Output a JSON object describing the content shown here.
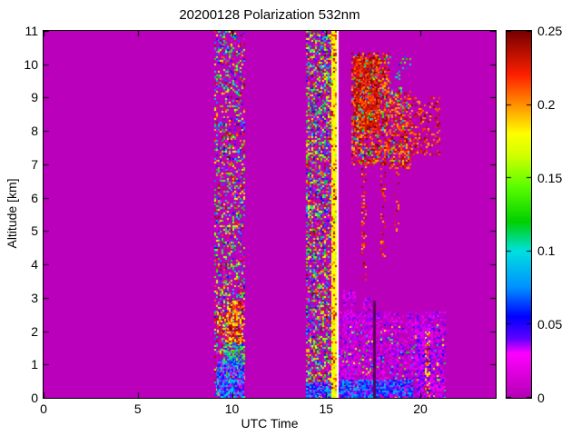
{
  "figure": {
    "background": "#ffffff",
    "axis_color": "#000000"
  },
  "chart_data": {
    "type": "heatmap",
    "title": "20200128 Polarization 532nm",
    "xlabel": "UTC Time",
    "ylabel": "Altitude [km]",
    "xlim": [
      0,
      24
    ],
    "ylim": [
      0,
      11
    ],
    "grid": false,
    "x_ticks": {
      "values": [
        0,
        5,
        10,
        15,
        20
      ],
      "labels": [
        "0",
        "5",
        "10",
        "15",
        "20"
      ]
    },
    "y_ticks": {
      "values": [
        0,
        1,
        2,
        3,
        4,
        5,
        6,
        7,
        8,
        9,
        10,
        11
      ],
      "labels": [
        "0",
        "1",
        "2",
        "3",
        "4",
        "5",
        "6",
        "7",
        "8",
        "9",
        "10",
        "11"
      ]
    },
    "colorbar": {
      "min": 0,
      "max": 0.25,
      "ticks": [
        0,
        0.05,
        0.1,
        0.15,
        0.2,
        0.25
      ],
      "labels": [
        "0",
        "0.05",
        "0.1",
        "0.15",
        "0.2",
        "0.25"
      ],
      "position": "right"
    },
    "background_value": 0,
    "background_color": "#ba00ba",
    "colormap_stops": [
      [
        0.0,
        "#b400b4"
      ],
      [
        0.12,
        "#ff00ff"
      ],
      [
        0.16,
        "#6000ff"
      ],
      [
        0.22,
        "#0000ff"
      ],
      [
        0.3,
        "#0090ff"
      ],
      [
        0.4,
        "#00e0e0"
      ],
      [
        0.48,
        "#00d000"
      ],
      [
        0.58,
        "#60ff00"
      ],
      [
        0.66,
        "#d0ff00"
      ],
      [
        0.72,
        "#ffff00"
      ],
      [
        0.8,
        "#ff9000"
      ],
      [
        0.88,
        "#ff2000"
      ],
      [
        1.0,
        "#780000"
      ]
    ],
    "regions": [
      {
        "name": "band1-speckle",
        "x": [
          9.05,
          10.65
        ],
        "y": [
          0,
          11
        ],
        "mode": "speckle",
        "density": 0.38,
        "value_range": [
          0,
          0.25
        ]
      },
      {
        "name": "band1-surface-cyan",
        "x": [
          9.2,
          10.65
        ],
        "y": [
          0,
          1.15
        ],
        "mode": "speckle",
        "density": 0.85,
        "value_range": [
          0.02,
          0.1
        ]
      },
      {
        "name": "band1-mid-green",
        "x": [
          9.55,
          10.65
        ],
        "y": [
          1.0,
          1.65
        ],
        "mode": "speckle",
        "density": 0.6,
        "value_range": [
          0.06,
          0.16
        ]
      },
      {
        "name": "band1-red-patch",
        "x": [
          9.75,
          10.55
        ],
        "y": [
          1.6,
          2.9
        ],
        "mode": "speckle",
        "density": 0.75,
        "value_range": [
          0.17,
          0.25
        ]
      },
      {
        "name": "band1-red-patch2",
        "x": [
          9.2,
          9.75
        ],
        "y": [
          1.9,
          2.65
        ],
        "mode": "speckle",
        "density": 0.45,
        "value_range": [
          0.15,
          0.25
        ]
      },
      {
        "name": "band2-speckle",
        "x": [
          13.95,
          15.3
        ],
        "y": [
          0,
          11
        ],
        "mode": "speckle",
        "density": 0.55,
        "value_range": [
          0,
          0.25
        ]
      },
      {
        "name": "band2-surface-blue",
        "x": [
          13.95,
          15.55
        ],
        "y": [
          0,
          0.45
        ],
        "mode": "speckle",
        "density": 0.9,
        "value_range": [
          0.03,
          0.1
        ]
      },
      {
        "name": "band2-yellow-stripe",
        "x": [
          15.28,
          15.56
        ],
        "y": [
          0,
          11
        ],
        "mode": "solid",
        "value": 0.18
      },
      {
        "name": "band2-yellow-stripe-texture",
        "x": [
          15.28,
          15.56
        ],
        "y": [
          0,
          11
        ],
        "mode": "speckle",
        "density": 0.35,
        "value_range": [
          0.15,
          0.25
        ]
      },
      {
        "name": "missing-data-white",
        "x": [
          15.56,
          15.68
        ],
        "y": [
          0,
          11
        ],
        "mode": "solid",
        "color": "#ffffff"
      },
      {
        "name": "cloud-main",
        "x": [
          16.35,
          18.35
        ],
        "y": [
          7.0,
          10.35
        ],
        "mode": "speckle",
        "density": 0.55,
        "value_range": [
          0.19,
          0.25
        ]
      },
      {
        "name": "cloud-core",
        "x": [
          16.5,
          17.8
        ],
        "y": [
          8.0,
          10.2
        ],
        "mode": "speckle",
        "density": 0.8,
        "value_range": [
          0.2,
          0.25
        ]
      },
      {
        "name": "cloud-right",
        "x": [
          18.35,
          19.5
        ],
        "y": [
          6.9,
          9.2
        ],
        "mode": "speckle",
        "density": 0.5,
        "value_range": [
          0.19,
          0.25
        ]
      },
      {
        "name": "cloud-far-right",
        "x": [
          19.5,
          21.0
        ],
        "y": [
          7.3,
          9.0
        ],
        "mode": "speckle",
        "density": 0.32,
        "value_range": [
          0.19,
          0.25
        ]
      },
      {
        "name": "cloud-green-sprinkle",
        "x": [
          16.35,
          19.5
        ],
        "y": [
          7.0,
          10.3
        ],
        "mode": "speckle",
        "density": 0.07,
        "value_range": [
          0.06,
          0.16
        ]
      },
      {
        "name": "cloud-wisp1",
        "x": [
          16.85,
          17.15
        ],
        "y": [
          3.5,
          7.0
        ],
        "mode": "speckle",
        "density": 0.3,
        "value_range": [
          0.19,
          0.25
        ]
      },
      {
        "name": "cloud-wisp2",
        "x": [
          17.9,
          18.15
        ],
        "y": [
          4.2,
          6.9
        ],
        "mode": "speckle",
        "density": 0.25,
        "value_range": [
          0.19,
          0.25
        ]
      },
      {
        "name": "cloud-wisp3",
        "x": [
          18.6,
          18.82
        ],
        "y": [
          5.0,
          6.9
        ],
        "mode": "speckle",
        "density": 0.2,
        "value_range": [
          0.19,
          0.25
        ]
      },
      {
        "name": "low-pink-base",
        "x": [
          15.68,
          21.3
        ],
        "y": [
          0,
          2.6
        ],
        "mode": "speckle",
        "density": 0.5,
        "value_range": [
          0.005,
          0.045
        ]
      },
      {
        "name": "low-pink-bump1",
        "x": [
          15.9,
          16.55
        ],
        "y": [
          0,
          3.25
        ],
        "mode": "speckle",
        "density": 0.5,
        "value_range": [
          0.005,
          0.045
        ]
      },
      {
        "name": "low-pink-bump2",
        "x": [
          16.95,
          17.45
        ],
        "y": [
          0,
          3.0
        ],
        "mode": "speckle",
        "density": 0.5,
        "value_range": [
          0.005,
          0.045
        ]
      },
      {
        "name": "low-color-sprinkle",
        "x": [
          15.68,
          21.3
        ],
        "y": [
          0,
          2.2
        ],
        "mode": "speckle",
        "density": 0.06,
        "value_range": [
          0.05,
          0.2
        ]
      },
      {
        "name": "low-surface-cyan",
        "x": [
          15.68,
          19.6
        ],
        "y": [
          0,
          0.55
        ],
        "mode": "speckle",
        "density": 0.85,
        "value_range": [
          0.03,
          0.09
        ]
      },
      {
        "name": "dark-gap-line",
        "x": [
          17.5,
          17.62
        ],
        "y": [
          0,
          2.9
        ],
        "mode": "solid",
        "color": "#55005a"
      },
      {
        "name": "pink-column-dense",
        "x": [
          19.8,
          20.65
        ],
        "y": [
          0,
          2.2
        ],
        "mode": "speckle",
        "density": 0.85,
        "value_range": [
          0.01,
          0.05
        ]
      },
      {
        "name": "red-speckle-column",
        "x": [
          20.25,
          20.5
        ],
        "y": [
          0,
          2.0
        ],
        "mode": "speckle",
        "density": 0.4,
        "value_range": [
          0.16,
          0.25
        ]
      },
      {
        "name": "pink-column-right",
        "x": [
          20.95,
          21.25
        ],
        "y": [
          0,
          1.45
        ],
        "mode": "speckle",
        "density": 0.6,
        "value_range": [
          0.005,
          0.05
        ]
      }
    ]
  }
}
